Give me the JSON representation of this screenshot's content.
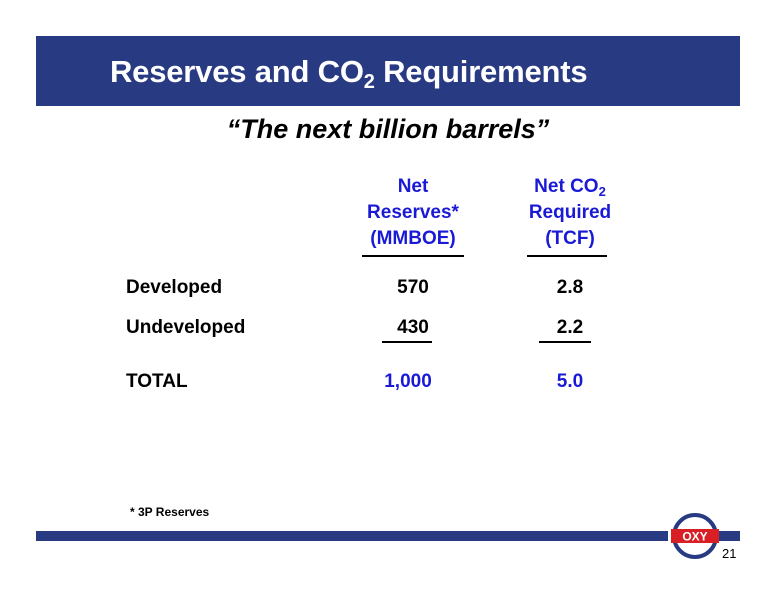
{
  "title": {
    "main": "Reserves and CO",
    "sub": "2",
    "rest": " Requirements"
  },
  "subtitle": "“The next billion barrels”",
  "columns": {
    "reserves": {
      "line1": "Net",
      "line2": "Reserves*",
      "line3": "(MMBOE)"
    },
    "co2": {
      "line1_main": "Net CO",
      "line1_sub": "2",
      "line2": "Required",
      "line3": "(TCF)"
    }
  },
  "rows": [
    {
      "label": "Developed",
      "reserves": "570",
      "co2": "2.8"
    },
    {
      "label": "Undeveloped",
      "reserves": "430",
      "co2": "2.2"
    },
    {
      "label": "TOTAL",
      "reserves": "1,000",
      "co2": "5.0"
    }
  ],
  "footnote": "* 3P Reserves",
  "logo_text": "OXY",
  "page_number": "21",
  "colors": {
    "brand_navy": "#283a82",
    "accent_blue": "#1a1ad6",
    "logo_red": "#d81f26"
  }
}
